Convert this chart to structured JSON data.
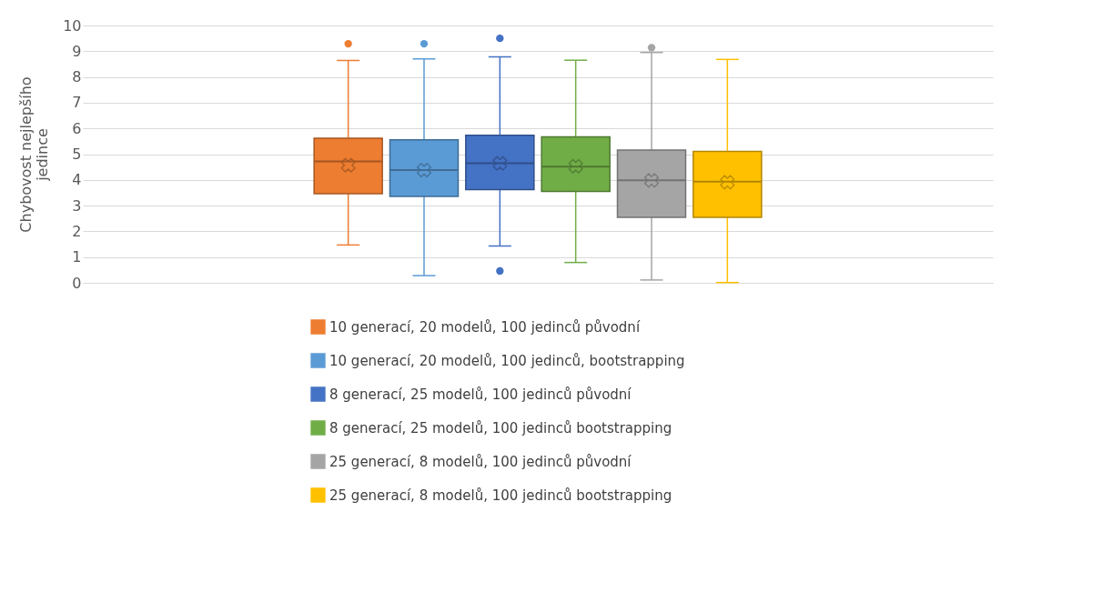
{
  "chart_data": {
    "type": "box",
    "ylabel": "Chybovost nejlepšího jedince",
    "categories": [
      null
    ],
    "ylim": [
      0,
      10
    ],
    "yticks": [
      0,
      1,
      2,
      3,
      4,
      5,
      6,
      7,
      8,
      9,
      10
    ],
    "grid": "y",
    "legend": "bottom",
    "tick_labels": "y",
    "series": [
      {
        "name": "10 generací, 20 modelů, 100 jedinců původní",
        "color": "#ed7d31",
        "boxes": [
          {
            "low": 1.47,
            "q1": 3.46,
            "median": 4.72,
            "q3": 5.62,
            "high": 8.64,
            "mean": 4.57,
            "outliers": [
              9.29
            ]
          }
        ]
      },
      {
        "name": "10 generací, 20 modelů, 100 jedinců, bootstrapping",
        "color": "#5b9bd5",
        "boxes": [
          {
            "low": 0.28,
            "q1": 3.36,
            "median": 4.38,
            "q3": 5.56,
            "high": 8.7,
            "mean": 4.38,
            "outliers": [
              9.29
            ]
          }
        ]
      },
      {
        "name": "8 generací, 25 modelů, 100 jedinců původní",
        "color": "#4472c4",
        "boxes": [
          {
            "low": 1.43,
            "q1": 3.62,
            "median": 4.65,
            "q3": 5.73,
            "high": 8.78,
            "mean": 4.64,
            "outliers": [
              9.5,
              0.46
            ]
          }
        ]
      },
      {
        "name": "8 generací, 25 modelů, 100 jedinců bootstrapping",
        "color": "#70ad47",
        "boxes": [
          {
            "low": 0.79,
            "q1": 3.55,
            "median": 4.51,
            "q3": 5.67,
            "high": 8.65,
            "mean": 4.53
          }
        ]
      },
      {
        "name": "25 generací, 8 modelů, 100 jedinců původní",
        "color": "#a5a5a5",
        "boxes": [
          {
            "low": 0.11,
            "q1": 2.54,
            "median": 3.98,
            "q3": 5.16,
            "high": 8.95,
            "mean": 3.98,
            "outliers": [
              9.14
            ]
          }
        ]
      },
      {
        "name": "25 generací, 8 modelů, 100 jedinců bootstrapping",
        "color": "#ffc000",
        "boxes": [
          {
            "low": 0.01,
            "q1": 2.54,
            "median": 3.93,
            "q3": 5.11,
            "high": 8.68,
            "mean": 3.91
          }
        ]
      }
    ]
  }
}
